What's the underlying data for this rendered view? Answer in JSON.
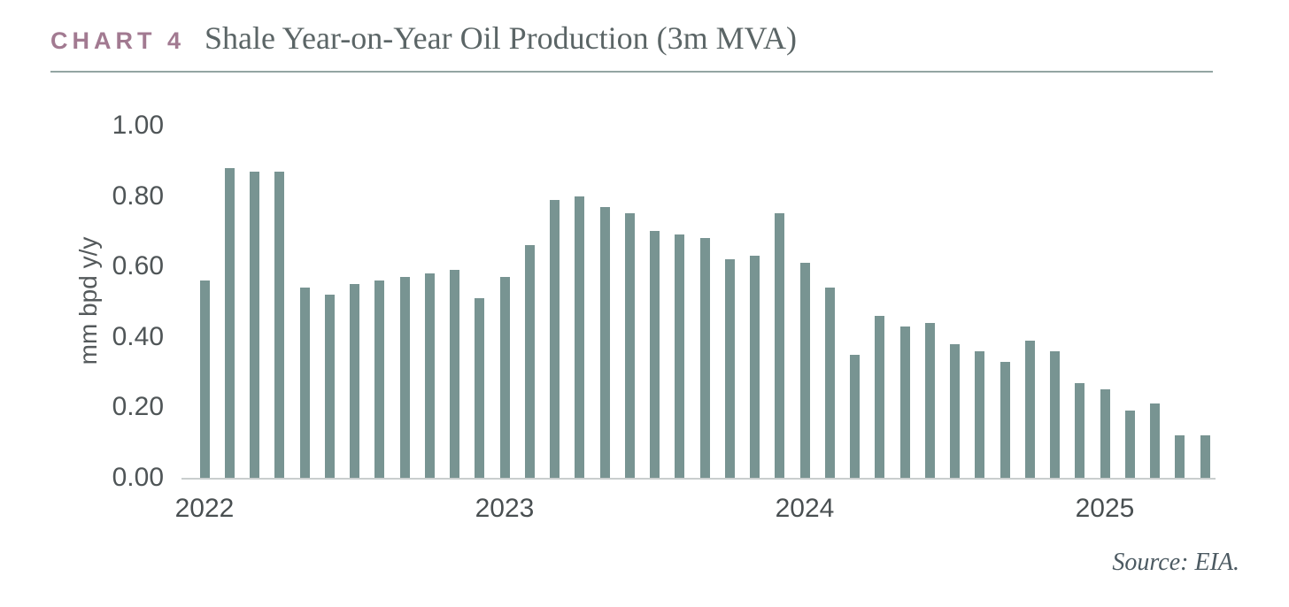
{
  "header": {
    "chart_label": "CHART 4",
    "title": "Shale Year-on-Year Oil Production (3m MVA)"
  },
  "source_note": "Source: EIA.",
  "colors": {
    "bar": "#789492",
    "chart_label": "#a27a91",
    "header_rule": "#93a5a3",
    "axis_line": "#c9cece",
    "tick_text": "#4f5557"
  },
  "chart_data": {
    "type": "bar",
    "title": "Shale Year-on-Year Oil Production (3m MVA)",
    "xlabel": "",
    "ylabel": "mm bpd y/y",
    "ylim": [
      0,
      1.0
    ],
    "grid": false,
    "legend": false,
    "y_tick_values": [
      0,
      0.2,
      0.4,
      0.6,
      0.8,
      1.0
    ],
    "y_tick_labels": [
      "0.00",
      "0.20",
      "0.40",
      "0.60",
      "0.80",
      "1.00"
    ],
    "x_tick_labels": [
      "2022",
      "2023",
      "2024",
      "2025"
    ],
    "x_tick_bar_indices": [
      0,
      12,
      24,
      36
    ],
    "categories": [
      "2022-01",
      "2022-02",
      "2022-03",
      "2022-04",
      "2022-05",
      "2022-06",
      "2022-07",
      "2022-08",
      "2022-09",
      "2022-10",
      "2022-11",
      "2022-12",
      "2023-01",
      "2023-02",
      "2023-03",
      "2023-04",
      "2023-05",
      "2023-06",
      "2023-07",
      "2023-08",
      "2023-09",
      "2023-10",
      "2023-11",
      "2023-12",
      "2024-01",
      "2024-02",
      "2024-03",
      "2024-04",
      "2024-05",
      "2024-06",
      "2024-07",
      "2024-08",
      "2024-09",
      "2024-10",
      "2024-11",
      "2024-12",
      "2025-01",
      "2025-02",
      "2025-03",
      "2025-04",
      "2025-05"
    ],
    "values": [
      0.56,
      0.88,
      0.87,
      0.87,
      0.54,
      0.52,
      0.55,
      0.56,
      0.57,
      0.58,
      0.59,
      0.51,
      0.57,
      0.66,
      0.79,
      0.8,
      0.77,
      0.75,
      0.7,
      0.69,
      0.68,
      0.62,
      0.63,
      0.75,
      0.61,
      0.54,
      0.35,
      0.46,
      0.43,
      0.44,
      0.38,
      0.36,
      0.33,
      0.39,
      0.36,
      0.27,
      0.25,
      0.19,
      0.21,
      0.12,
      0.12
    ]
  }
}
